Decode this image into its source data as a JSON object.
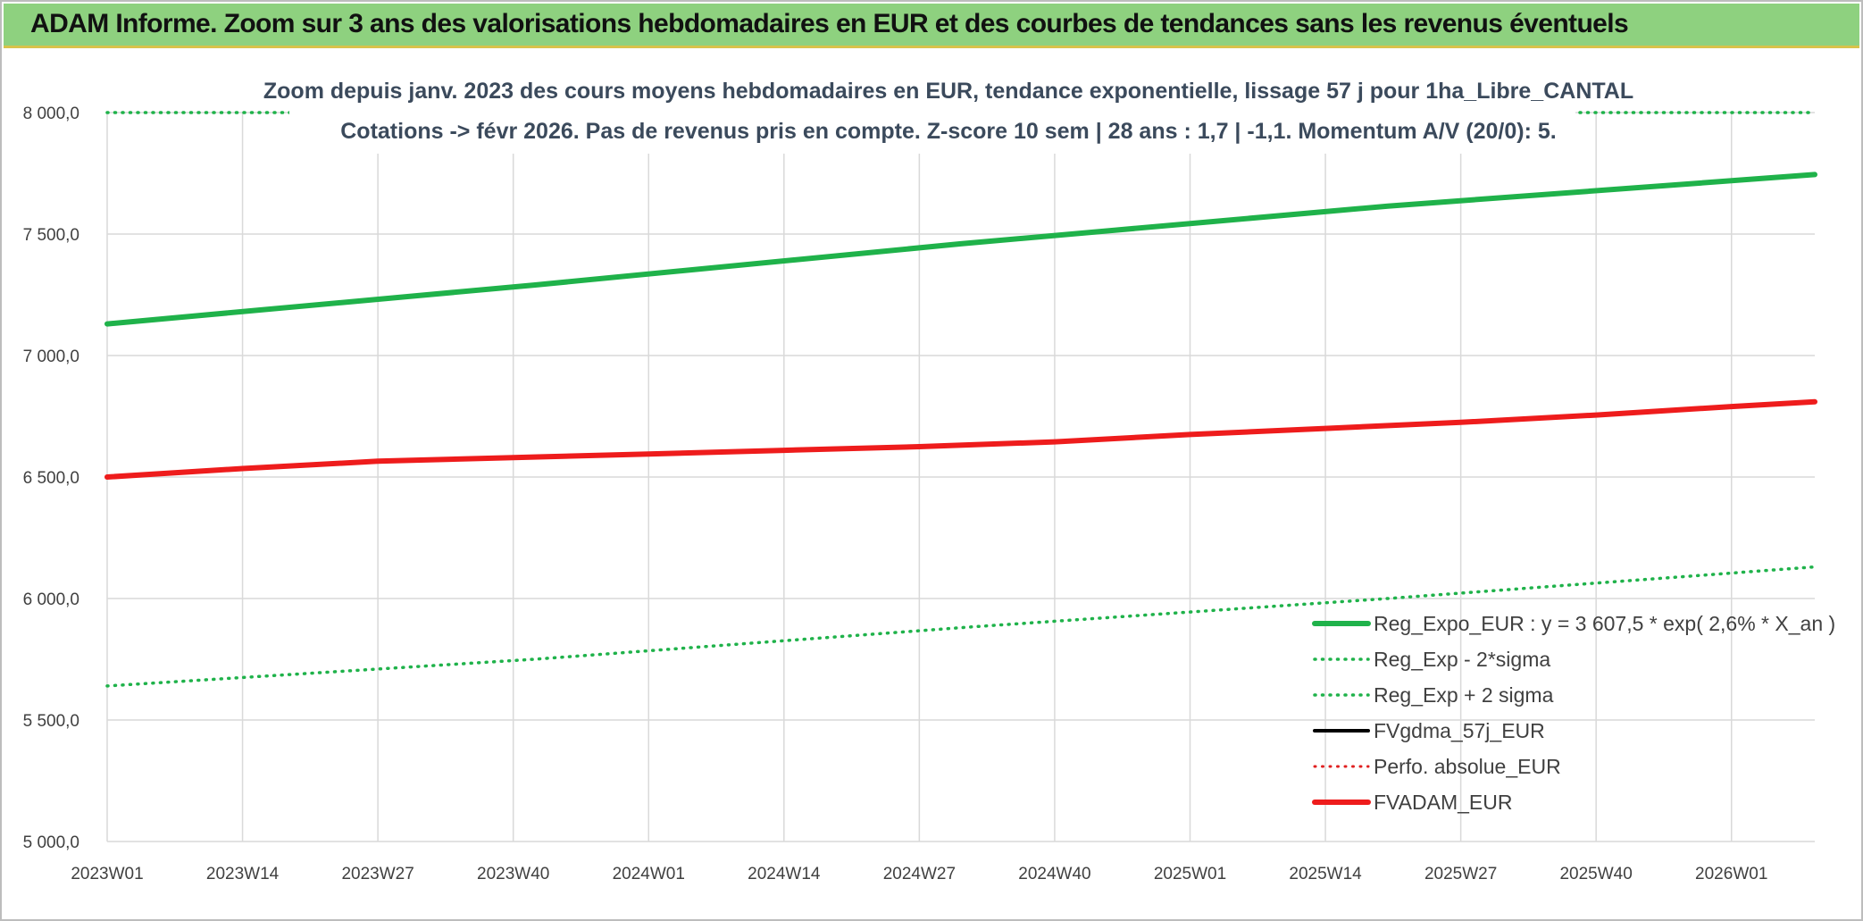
{
  "banner": {
    "title": "ADAM Informe. Zoom sur 3 ans des valorisations hebdomadaires en EUR et des courbes de tendances sans les revenus éventuels"
  },
  "chart_data": {
    "type": "line",
    "title_lines": [
      "Zoom depuis janv. 2023 des cours moyens hebdomadaires en EUR, tendance exponentielle, lissage 57 j pour 1ha_Libre_CANTAL",
      "Cotations -> févr 2026. Pas de revenus pris en compte. Z-score 10 sem | 28 ans : 1,7 | -1,1. Momentum A/V (20/0): 5."
    ],
    "x_tick_labels": [
      "2023W01",
      "2023W14",
      "2023W27",
      "2023W40",
      "2024W01",
      "2024W14",
      "2024W27",
      "2024W40",
      "2025W01",
      "2025W14",
      "2025W27",
      "2025W40",
      "2026W01"
    ],
    "x_range_weeks": [
      0,
      164
    ],
    "weeks_per_tick": 13,
    "y_tick_labels": [
      "8 000,0",
      "7 500,0",
      "7 000,0",
      "6 500,0",
      "6 000,0",
      "5 500,0",
      "5 000,0"
    ],
    "y_tick_values": [
      8000,
      7500,
      7000,
      6500,
      6000,
      5500,
      5000
    ],
    "ylim": [
      5000,
      8000
    ],
    "grid": true,
    "legend_position": "bottom-right",
    "series": [
      {
        "name": "Reg_Expo_EUR : y = 3 607,5 * exp( 2,6% *  X_an )",
        "color": "#1fb24a",
        "style": "solid",
        "width": 6,
        "points": [
          [
            0,
            7130
          ],
          [
            41,
            7290
          ],
          [
            82,
            7460
          ],
          [
            123,
            7615
          ],
          [
            164,
            7745
          ]
        ]
      },
      {
        "name": "Reg_Exp - 2*sigma",
        "color": "#1fb24a",
        "style": "dotted",
        "width": 3.5,
        "points": [
          [
            0,
            5640
          ],
          [
            41,
            5750
          ],
          [
            82,
            5880
          ],
          [
            123,
            6000
          ],
          [
            164,
            6130
          ]
        ]
      },
      {
        "name": "Reg_Exp + 2 sigma",
        "color": "#1fb24a",
        "style": "dotted",
        "width": 3.5,
        "points": [
          [
            0,
            8000
          ],
          [
            164,
            8000
          ]
        ],
        "note_visible": "top line at upper bound"
      },
      {
        "name": "FVgdma_57j_EUR",
        "color": "#000000",
        "style": "solid",
        "width": 4,
        "points": []
      },
      {
        "name": "Perfo. absolue_EUR",
        "color": "#e02020",
        "style": "dotted",
        "width": 3,
        "points": []
      },
      {
        "name": "FVADAM_EUR",
        "color": "#ee1c1c",
        "style": "solid",
        "width": 6,
        "points": [
          [
            0,
            6500
          ],
          [
            13,
            6535
          ],
          [
            26,
            6565
          ],
          [
            39,
            6580
          ],
          [
            52,
            6595
          ],
          [
            65,
            6610
          ],
          [
            78,
            6625
          ],
          [
            91,
            6645
          ],
          [
            104,
            6675
          ],
          [
            117,
            6700
          ],
          [
            130,
            6725
          ],
          [
            143,
            6755
          ],
          [
            156,
            6790
          ],
          [
            164,
            6810
          ]
        ]
      }
    ]
  }
}
